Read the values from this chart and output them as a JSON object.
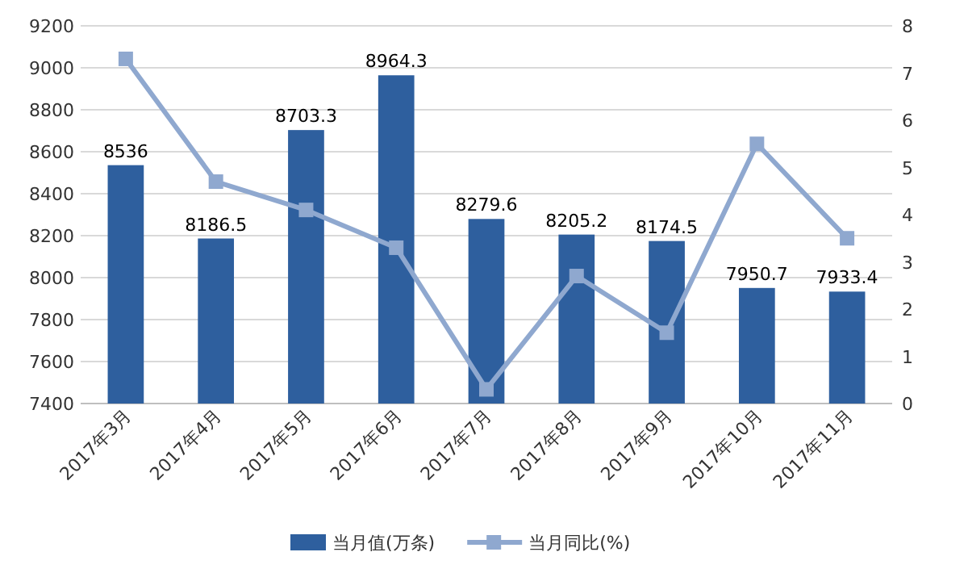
{
  "chart_data": {
    "type": "bar",
    "categories": [
      "2017年3月",
      "2017年4月",
      "2017年5月",
      "2017年6月",
      "2017年7月",
      "2017年8月",
      "2017年9月",
      "2017年10月",
      "2017年11月"
    ],
    "series": [
      {
        "name": "当月值(万条)",
        "color": "#2e5f9e",
        "values": [
          8536,
          8186.5,
          8703.3,
          8964.3,
          8279.6,
          8205.2,
          8174.5,
          7950.7,
          7933.4
        ],
        "value_labels": [
          "8536",
          "8186.5",
          "8703.3",
          "8964.3",
          "8279.6",
          "8205.2",
          "8174.5",
          "7950.7",
          "7933.4"
        ]
      },
      {
        "name": "当月同比(%)",
        "type": "line",
        "axis": "y2",
        "color": "#8fa8cf",
        "marker": "square",
        "values": [
          7.3,
          4.7,
          4.1,
          3.3,
          0.3,
          2.7,
          1.5,
          5.5,
          3.5
        ]
      }
    ],
    "ylim": [
      7400,
      9200
    ],
    "yticks": [
      7400,
      7600,
      7800,
      8000,
      8200,
      8400,
      8600,
      8800,
      9000,
      9200
    ],
    "y2lim": [
      0,
      8
    ],
    "y2ticks": [
      0,
      1,
      2,
      3,
      4,
      5,
      6,
      7,
      8
    ],
    "grid": "y",
    "legend": "bottom"
  }
}
